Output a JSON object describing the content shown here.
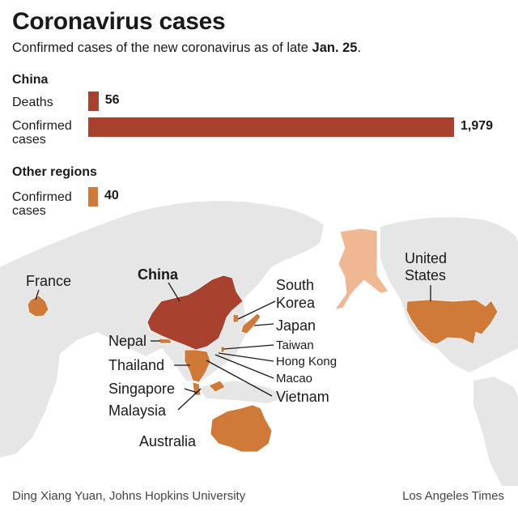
{
  "header": {
    "title": "Coronavirus cases",
    "subtitle_prefix": "Confirmed cases of the new coronavirus as of late ",
    "subtitle_bold": "Jan. 25",
    "subtitle_suffix": "."
  },
  "chart_data": {
    "type": "bar",
    "orientation": "horizontal",
    "groups": [
      {
        "name": "China",
        "bars": [
          {
            "label": "Deaths",
            "value": 56,
            "value_label": "56",
            "color": "#a9412f"
          },
          {
            "label": "Confirmed cases",
            "label_line1": "Confirmed",
            "label_line2": "cases",
            "value": 1979,
            "value_label": "1,979",
            "color": "#a9412f"
          }
        ]
      },
      {
        "name": "Other regions",
        "bars": [
          {
            "label": "Confirmed cases",
            "label_line1": "Confirmed",
            "label_line2": "cases",
            "value": 40,
            "value_label": "40",
            "color": "#d07a3a"
          }
        ]
      }
    ],
    "xlim": [
      0,
      1979
    ],
    "grid": false,
    "legend": "none"
  },
  "map": {
    "colors": {
      "land": "#e6e6e6",
      "china": "#a9412f",
      "confirmed": "#d07a3a",
      "alaska": "#f0b892"
    },
    "labels": {
      "france": "France",
      "china": "China",
      "south_korea_1": "South",
      "south_korea_2": "Korea",
      "japan": "Japan",
      "taiwan": "Taiwan",
      "hong_kong": "Hong Kong",
      "macao": "Macao",
      "vietnam": "Vietnam",
      "nepal": "Nepal",
      "thailand": "Thailand",
      "singapore": "Singapore",
      "malaysia": "Malaysia",
      "australia": "Australia",
      "us_1": "United",
      "us_2": "States"
    }
  },
  "footer": {
    "source": "Ding Xiang Yuan, Johns Hopkins University",
    "credit": "Los Angeles Times"
  }
}
